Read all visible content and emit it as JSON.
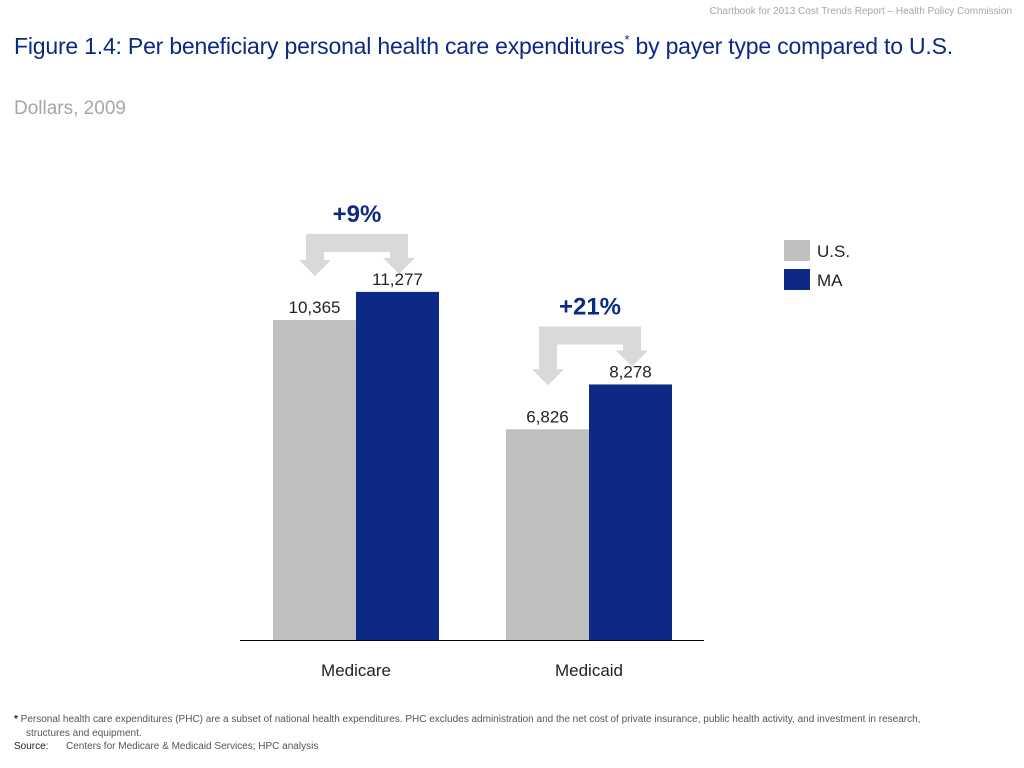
{
  "header_note": "Chartbook for 2013 Cost Trends Report – Health Policy Commission",
  "title_main": "Figure 1.4: Per beneficiary personal health care expenditures",
  "title_mark": "*",
  "title_rest": " by payer type compared to U.S.",
  "subtitle": "Dollars, 2009",
  "chart_data": {
    "type": "bar",
    "categories": [
      "Medicare",
      "Medicaid"
    ],
    "series": [
      {
        "name": "U.S.",
        "values": [
          10365,
          6826
        ],
        "labels": [
          "10,365",
          "6,826"
        ],
        "color": "#bfbfbf"
      },
      {
        "name": "MA",
        "values": [
          11277,
          8278
        ],
        "labels": [
          "11,277",
          "8,278"
        ],
        "color": "#0c2a85"
      }
    ],
    "annotations": [
      "+9%",
      "+21%"
    ],
    "ylim": [
      0,
      13000
    ],
    "legend_placement": "top-right",
    "grid": false,
    "arrow_color": "#d9d9d9"
  },
  "footnote_mark": "*",
  "footnote_line1": " Personal health care expenditures (PHC) are a subset of national health expenditures. PHC excludes administration and the net cost of private insurance, public health activity, and investment in research,",
  "footnote_line2": "structures and equipment.",
  "source_key": "Source:",
  "source_text": "Centers for Medicare & Medicaid Services; HPC analysis"
}
